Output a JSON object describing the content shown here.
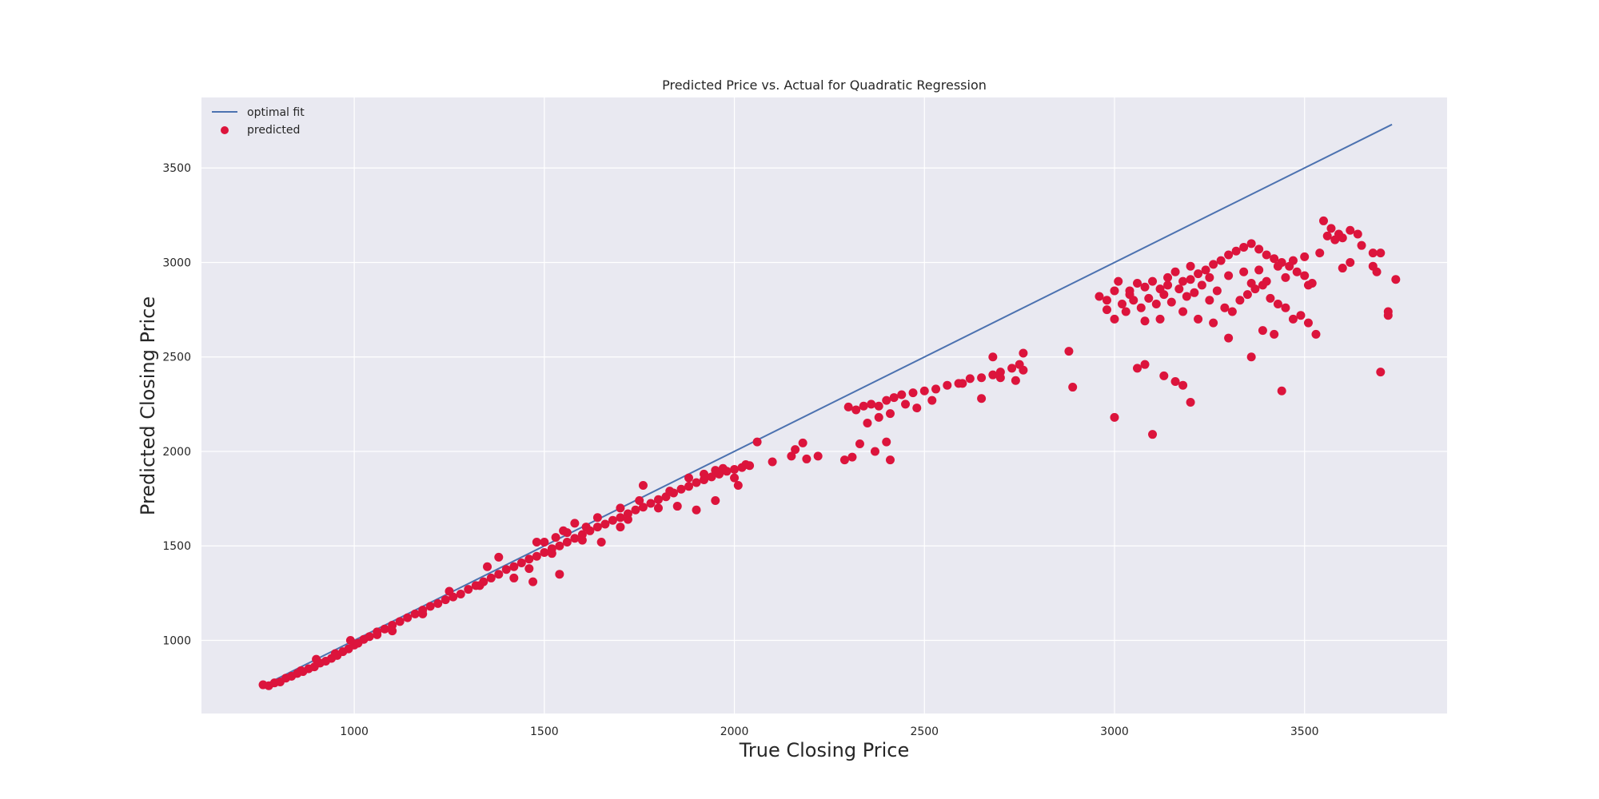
{
  "chart_data": {
    "type": "scatter",
    "title": "Predicted Price vs. Actual for Quadratic Regression",
    "xlabel": "True Closing Price",
    "ylabel": "Predicted Closing Price",
    "xlim": [
      598,
      3875
    ],
    "ylim": [
      613,
      3873
    ],
    "x_ticks": [
      1000,
      1500,
      2000,
      2500,
      3000,
      3500
    ],
    "y_ticks": [
      1000,
      1500,
      2000,
      2500,
      3000,
      3500
    ],
    "grid": true,
    "legend_position": "top-left",
    "colors": {
      "plot_background": "#e9e9f1",
      "grid": "#ffffff",
      "line": "#4c72b0",
      "points": "#dc143c"
    },
    "series": [
      {
        "name": "optimal fit",
        "kind": "line",
        "x": [
          760,
          3730
        ],
        "y": [
          760,
          3730
        ]
      },
      {
        "name": "predicted",
        "kind": "scatter",
        "points": [
          [
            760,
            765
          ],
          [
            775,
            760
          ],
          [
            790,
            775
          ],
          [
            805,
            780
          ],
          [
            820,
            800
          ],
          [
            835,
            810
          ],
          [
            850,
            825
          ],
          [
            865,
            835
          ],
          [
            880,
            850
          ],
          [
            895,
            860
          ],
          [
            910,
            880
          ],
          [
            925,
            890
          ],
          [
            940,
            905
          ],
          [
            955,
            920
          ],
          [
            970,
            940
          ],
          [
            985,
            955
          ],
          [
            1000,
            975
          ],
          [
            1010,
            985
          ],
          [
            1025,
            1005
          ],
          [
            1040,
            1020
          ],
          [
            1060,
            1045
          ],
          [
            1080,
            1060
          ],
          [
            1100,
            1080
          ],
          [
            1120,
            1100
          ],
          [
            1140,
            1120
          ],
          [
            1160,
            1140
          ],
          [
            1180,
            1160
          ],
          [
            1200,
            1180
          ],
          [
            1220,
            1195
          ],
          [
            1240,
            1215
          ],
          [
            1260,
            1230
          ],
          [
            1280,
            1245
          ],
          [
            1300,
            1270
          ],
          [
            1320,
            1290
          ],
          [
            1340,
            1310
          ],
          [
            1360,
            1330
          ],
          [
            1380,
            1350
          ],
          [
            1400,
            1375
          ],
          [
            1420,
            1390
          ],
          [
            1440,
            1410
          ],
          [
            1460,
            1430
          ],
          [
            1480,
            1445
          ],
          [
            1500,
            1465
          ],
          [
            1520,
            1485
          ],
          [
            1540,
            1500
          ],
          [
            1560,
            1520
          ],
          [
            1580,
            1540
          ],
          [
            1600,
            1560
          ],
          [
            1620,
            1580
          ],
          [
            1640,
            1600
          ],
          [
            1660,
            1615
          ],
          [
            1680,
            1635
          ],
          [
            1700,
            1650
          ],
          [
            1720,
            1670
          ],
          [
            1740,
            1690
          ],
          [
            1760,
            1705
          ],
          [
            1780,
            1725
          ],
          [
            1800,
            1745
          ],
          [
            1820,
            1760
          ],
          [
            1840,
            1780
          ],
          [
            1860,
            1800
          ],
          [
            1880,
            1815
          ],
          [
            1900,
            1835
          ],
          [
            1920,
            1850
          ],
          [
            1940,
            1865
          ],
          [
            1960,
            1880
          ],
          [
            1980,
            1895
          ],
          [
            2000,
            1905
          ],
          [
            2020,
            1915
          ],
          [
            2040,
            1925
          ],
          [
            1350,
            1390
          ],
          [
            1380,
            1440
          ],
          [
            1420,
            1330
          ],
          [
            1460,
            1380
          ],
          [
            1500,
            1520
          ],
          [
            1520,
            1460
          ],
          [
            1550,
            1580
          ],
          [
            1600,
            1530
          ],
          [
            1650,
            1520
          ],
          [
            1700,
            1600
          ],
          [
            1760,
            1820
          ],
          [
            1800,
            1700
          ],
          [
            1850,
            1710
          ],
          [
            1900,
            1690
          ],
          [
            1950,
            1740
          ],
          [
            2010,
            1820
          ],
          [
            1580,
            1620
          ],
          [
            1640,
            1650
          ],
          [
            1720,
            1640
          ],
          [
            1470,
            1310
          ],
          [
            1540,
            1350
          ],
          [
            1330,
            1290
          ],
          [
            1250,
            1260
          ],
          [
            1180,
            1140
          ],
          [
            1100,
            1050
          ],
          [
            1060,
            1030
          ],
          [
            990,
            1000
          ],
          [
            950,
            930
          ],
          [
            900,
            900
          ],
          [
            860,
            840
          ],
          [
            1480,
            1520
          ],
          [
            1530,
            1545
          ],
          [
            1560,
            1570
          ],
          [
            1610,
            1600
          ],
          [
            1700,
            1700
          ],
          [
            1750,
            1740
          ],
          [
            1830,
            1790
          ],
          [
            1880,
            1860
          ],
          [
            1920,
            1880
          ],
          [
            1950,
            1900
          ],
          [
            2100,
            1945
          ],
          [
            2150,
            1975
          ],
          [
            2160,
            2010
          ],
          [
            2180,
            2045
          ],
          [
            2190,
            1960
          ],
          [
            2220,
            1975
          ],
          [
            2060,
            2050
          ],
          [
            2030,
            1930
          ],
          [
            2000,
            1860
          ],
          [
            1970,
            1910
          ],
          [
            2290,
            1955
          ],
          [
            2300,
            2235
          ],
          [
            2320,
            2220
          ],
          [
            2340,
            2240
          ],
          [
            2360,
            2250
          ],
          [
            2380,
            2240
          ],
          [
            2400,
            2270
          ],
          [
            2420,
            2285
          ],
          [
            2440,
            2300
          ],
          [
            2470,
            2310
          ],
          [
            2500,
            2320
          ],
          [
            2530,
            2330
          ],
          [
            2560,
            2350
          ],
          [
            2590,
            2360
          ],
          [
            2620,
            2385
          ],
          [
            2650,
            2390
          ],
          [
            2680,
            2405
          ],
          [
            2700,
            2420
          ],
          [
            2730,
            2440
          ],
          [
            2750,
            2460
          ],
          [
            2760,
            2430
          ],
          [
            2740,
            2375
          ],
          [
            2700,
            2390
          ],
          [
            2650,
            2280
          ],
          [
            2600,
            2360
          ],
          [
            2520,
            2270
          ],
          [
            2480,
            2230
          ],
          [
            2450,
            2250
          ],
          [
            2410,
            2200
          ],
          [
            2380,
            2180
          ],
          [
            2350,
            2150
          ],
          [
            2330,
            2040
          ],
          [
            2310,
            1970
          ],
          [
            2370,
            2000
          ],
          [
            2400,
            2050
          ],
          [
            2410,
            1955
          ],
          [
            2760,
            2520
          ],
          [
            2680,
            2500
          ],
          [
            2880,
            2530
          ],
          [
            2890,
            2340
          ],
          [
            2960,
            2820
          ],
          [
            2980,
            2800
          ],
          [
            3000,
            2850
          ],
          [
            3020,
            2780
          ],
          [
            3040,
            2830
          ],
          [
            3060,
            2890
          ],
          [
            3080,
            2870
          ],
          [
            3100,
            2900
          ],
          [
            3120,
            2860
          ],
          [
            3140,
            2920
          ],
          [
            3160,
            2950
          ],
          [
            3180,
            2900
          ],
          [
            3200,
            2980
          ],
          [
            3220,
            2940
          ],
          [
            3240,
            2960
          ],
          [
            3260,
            2990
          ],
          [
            3280,
            3010
          ],
          [
            3300,
            3040
          ],
          [
            3320,
            3060
          ],
          [
            3340,
            3080
          ],
          [
            3360,
            3100
          ],
          [
            3380,
            3070
          ],
          [
            3400,
            3040
          ],
          [
            3420,
            3020
          ],
          [
            3440,
            3000
          ],
          [
            3460,
            2980
          ],
          [
            3480,
            2950
          ],
          [
            3500,
            2930
          ],
          [
            3520,
            2890
          ],
          [
            3540,
            3050
          ],
          [
            2980,
            2750
          ],
          [
            3000,
            2700
          ],
          [
            3030,
            2740
          ],
          [
            3050,
            2800
          ],
          [
            3070,
            2760
          ],
          [
            3090,
            2810
          ],
          [
            3110,
            2780
          ],
          [
            3130,
            2830
          ],
          [
            3150,
            2790
          ],
          [
            3170,
            2860
          ],
          [
            3190,
            2820
          ],
          [
            3210,
            2840
          ],
          [
            3230,
            2880
          ],
          [
            3250,
            2800
          ],
          [
            3270,
            2850
          ],
          [
            3290,
            2760
          ],
          [
            3310,
            2740
          ],
          [
            3330,
            2800
          ],
          [
            3350,
            2830
          ],
          [
            3370,
            2860
          ],
          [
            3390,
            2880
          ],
          [
            3410,
            2810
          ],
          [
            3430,
            2780
          ],
          [
            3450,
            2760
          ],
          [
            3470,
            2700
          ],
          [
            3490,
            2720
          ],
          [
            3510,
            2680
          ],
          [
            3390,
            2640
          ],
          [
            3420,
            2620
          ],
          [
            3360,
            2500
          ],
          [
            3300,
            2600
          ],
          [
            3260,
            2680
          ],
          [
            3220,
            2700
          ],
          [
            3180,
            2740
          ],
          [
            3120,
            2700
          ],
          [
            3080,
            2690
          ],
          [
            3040,
            2850
          ],
          [
            3010,
            2900
          ],
          [
            3140,
            2880
          ],
          [
            3200,
            2910
          ],
          [
            3250,
            2920
          ],
          [
            3300,
            2930
          ],
          [
            3340,
            2950
          ],
          [
            3380,
            2960
          ],
          [
            3430,
            2980
          ],
          [
            3470,
            3010
          ],
          [
            3500,
            3030
          ],
          [
            3450,
            2920
          ],
          [
            3400,
            2900
          ],
          [
            3360,
            2890
          ],
          [
            3060,
            2440
          ],
          [
            3080,
            2460
          ],
          [
            3130,
            2400
          ],
          [
            3160,
            2370
          ],
          [
            3180,
            2350
          ],
          [
            3200,
            2260
          ],
          [
            3000,
            2180
          ],
          [
            3100,
            2090
          ],
          [
            3440,
            2320
          ],
          [
            3700,
            2420
          ],
          [
            3550,
            3220
          ],
          [
            3570,
            3180
          ],
          [
            3590,
            3150
          ],
          [
            3600,
            3130
          ],
          [
            3620,
            3170
          ],
          [
            3640,
            3150
          ],
          [
            3650,
            3090
          ],
          [
            3680,
            3050
          ],
          [
            3700,
            3050
          ],
          [
            3620,
            3000
          ],
          [
            3680,
            2980
          ],
          [
            3690,
            2950
          ],
          [
            3720,
            2740
          ],
          [
            3720,
            2720
          ],
          [
            3740,
            2910
          ],
          [
            3530,
            2620
          ],
          [
            3510,
            2880
          ],
          [
            3580,
            3120
          ],
          [
            3560,
            3140
          ],
          [
            3600,
            2970
          ]
        ]
      }
    ]
  }
}
